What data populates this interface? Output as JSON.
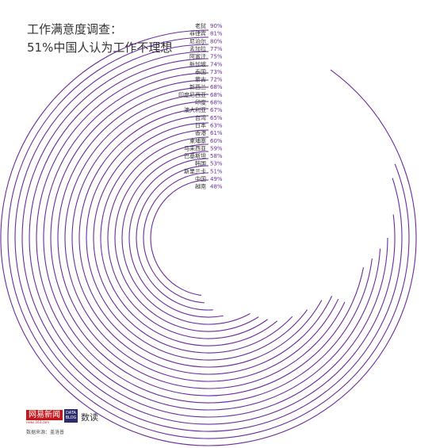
{
  "title": {
    "line1": "工作满意度调查：",
    "line2": "51%中国人认为工作不理想"
  },
  "chart_data": {
    "type": "radial-bar",
    "unit": "%",
    "max": 100,
    "color": "#6a2c9c",
    "categories": [
      "老挝",
      "菲律宾",
      "尼泊尔",
      "孟加拉",
      "阿富汗",
      "新加坡",
      "泰国",
      "蒙古",
      "新西兰",
      "印度尼西亚",
      "印度",
      "澳大利亚",
      "台湾",
      "日本",
      "香港",
      "柬埔寨",
      "马来西亚",
      "巴基斯坦",
      "韩国",
      "斯里兰卡",
      "中国",
      "越南"
    ],
    "values": [
      90,
      81,
      80,
      77,
      75,
      74,
      73,
      72,
      68,
      68,
      68,
      67,
      65,
      63,
      61,
      60,
      59,
      58,
      53,
      51,
      49,
      48
    ],
    "value_labels": [
      "90%",
      "81%",
      "80%",
      "77%",
      "75%",
      "74%",
      "73%",
      "72%",
      "68%",
      "68%",
      "68%",
      "67%",
      "65%",
      "63%",
      "61%",
      "60%",
      "59%",
      "58%",
      "53%",
      "51%",
      "49%",
      "48%"
    ]
  },
  "footer": {
    "brand": "网易新闻",
    "brand_sub": "news.163.com",
    "badge": "DATA BLOG",
    "product": "数读",
    "source": "数据来源：盖洛普"
  }
}
